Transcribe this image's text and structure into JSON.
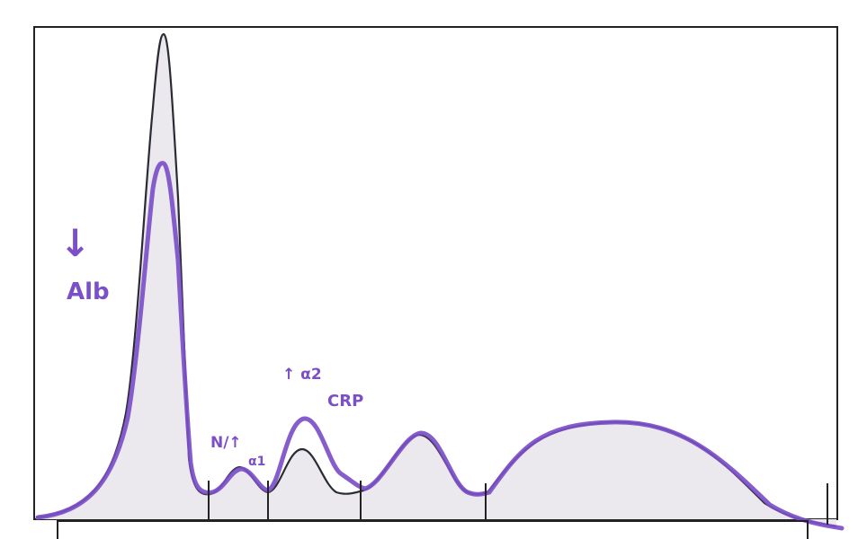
{
  "annotations": {
    "albumin_arrow": "↓",
    "albumin_label": "Alb",
    "alpha1_label_line1": "N/↑",
    "alpha1_label_line2": "α1",
    "alpha2_label_line1": "↑ α2",
    "alpha2_label_line2": "CRP"
  },
  "colors": {
    "normal_trace": "#2b2b33",
    "patient_trace": "#7b4fc8",
    "fill": "#ece9ee",
    "frame": "#222222"
  },
  "chart_data": {
    "type": "line",
    "description_of_traces": [
      "normal reference curve (black)",
      "patient curve (purple)"
    ],
    "fractions": [
      "albumin",
      "alpha-1",
      "alpha-2",
      "beta",
      "gamma"
    ]
  }
}
